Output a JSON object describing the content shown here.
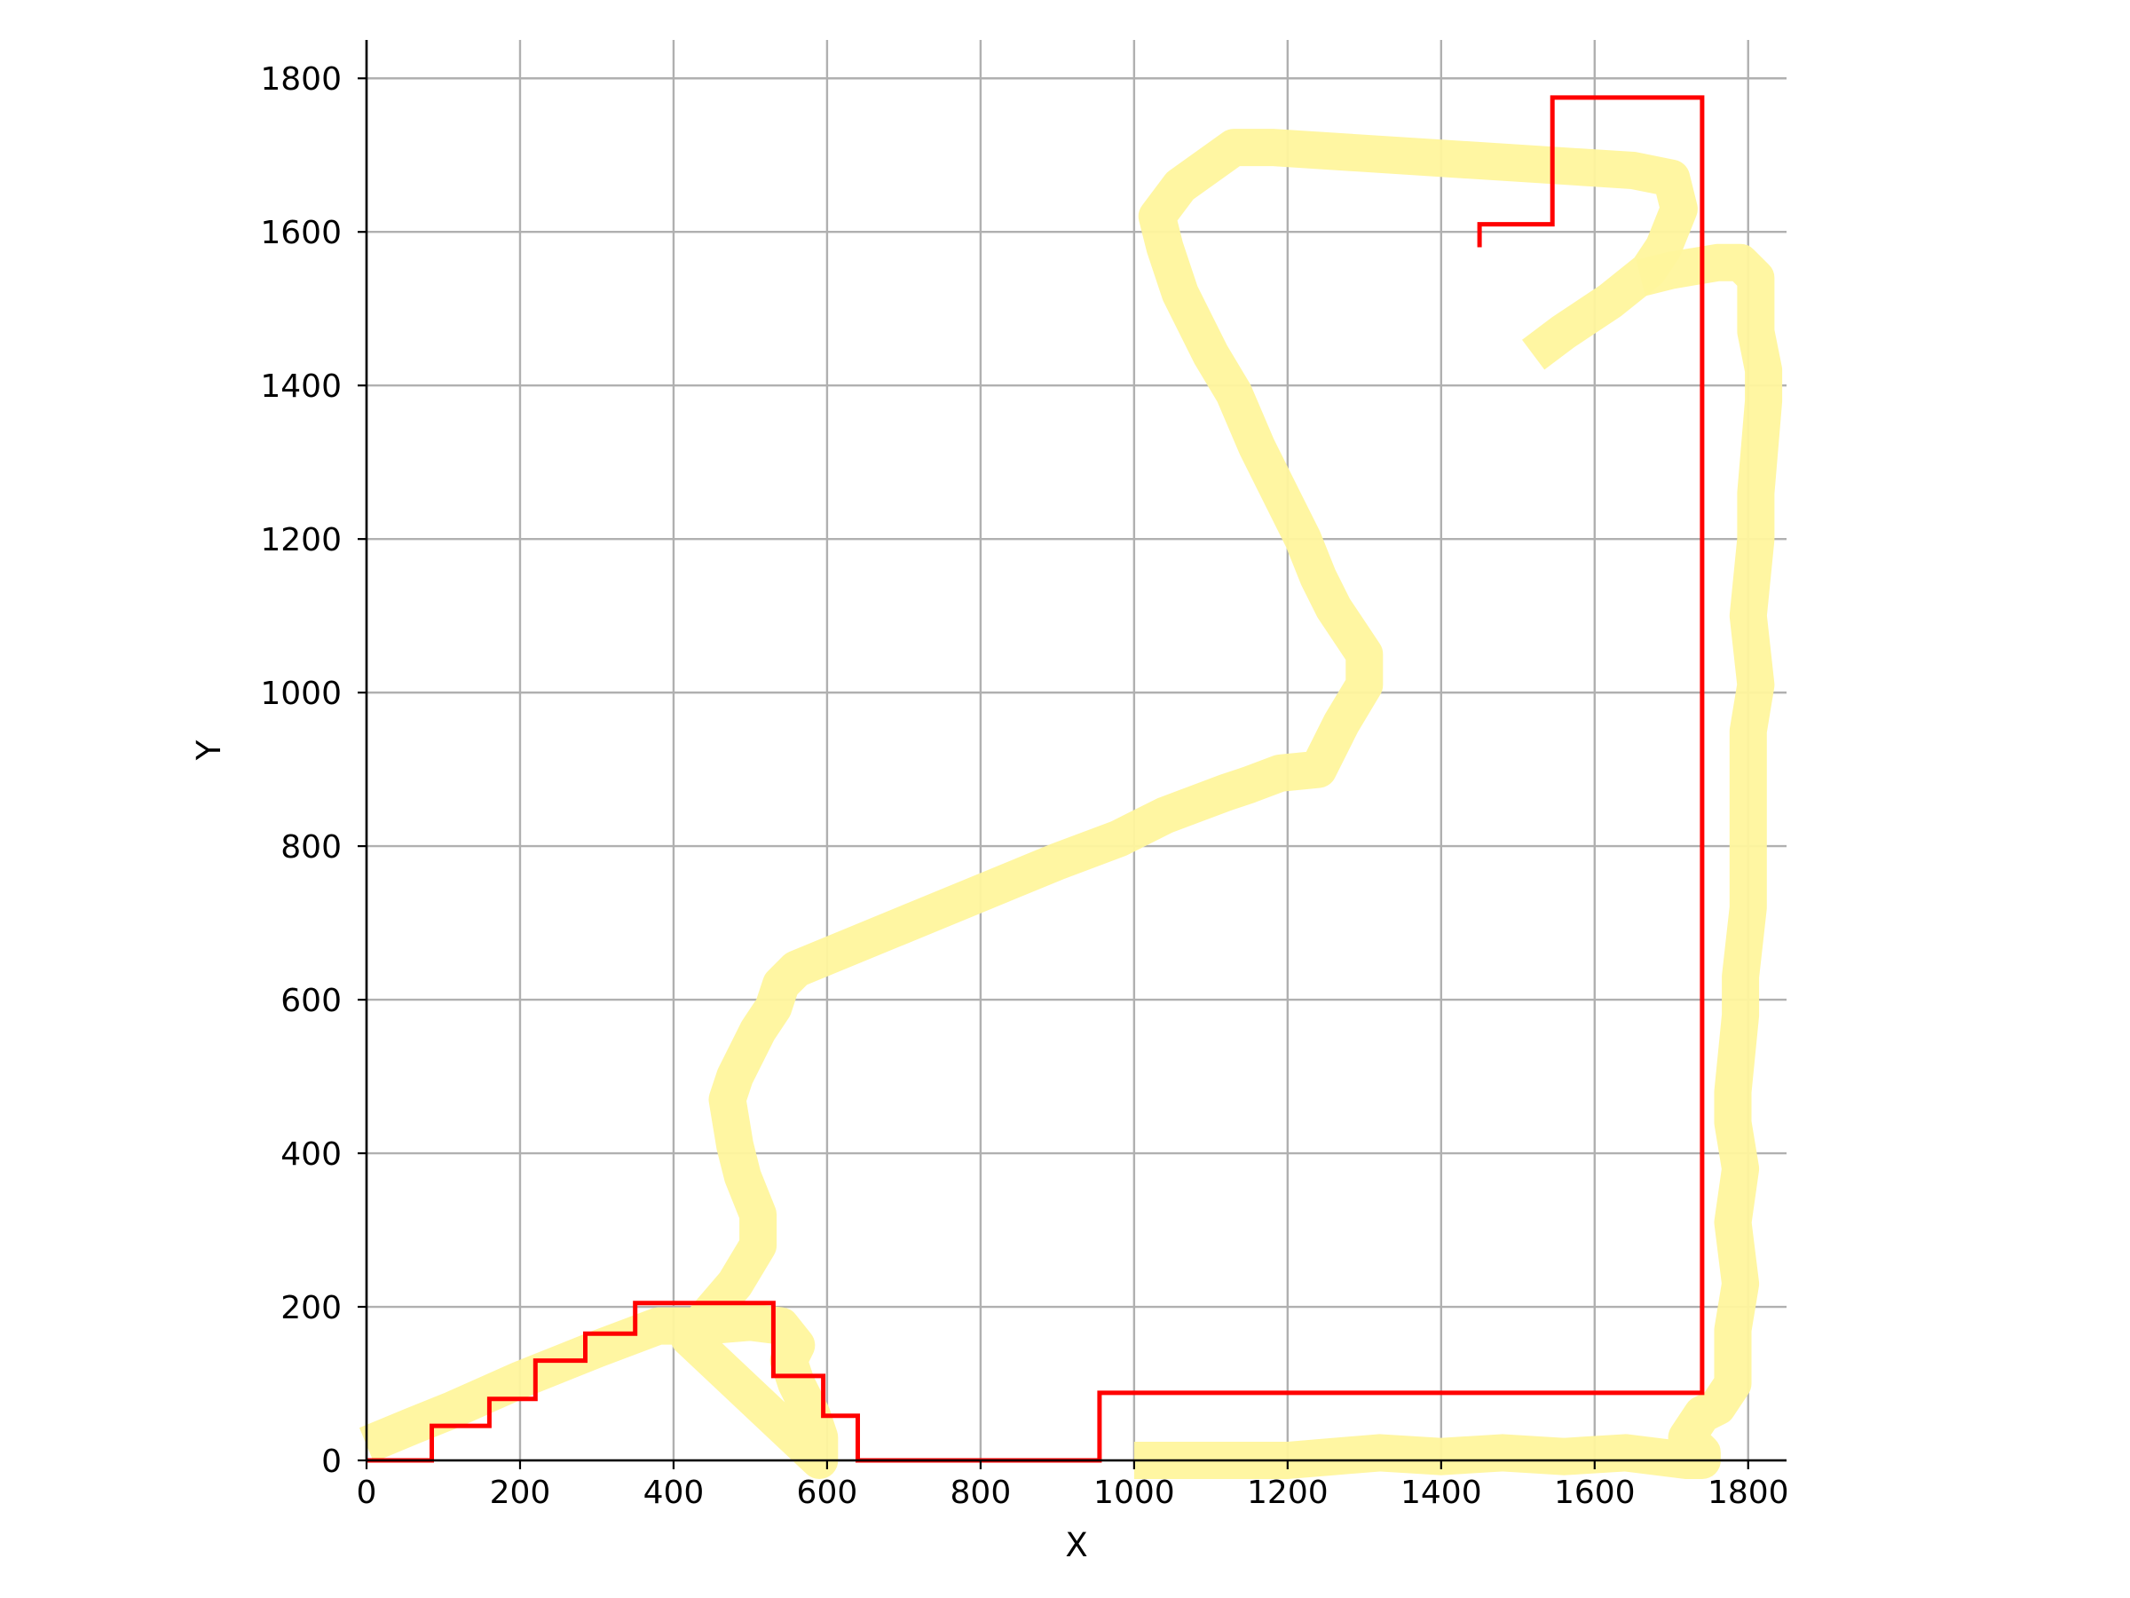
{
  "chart_data": {
    "type": "line",
    "title": "",
    "xlabel": "X",
    "ylabel": "Y",
    "xlim": [
      0,
      1850
    ],
    "ylim": [
      0,
      1850
    ],
    "xticks": [
      0,
      200,
      400,
      600,
      800,
      1000,
      1200,
      1400,
      1600,
      1800
    ],
    "yticks": [
      0,
      200,
      400,
      600,
      800,
      1000,
      1200,
      1400,
      1600,
      1800
    ],
    "grid": true,
    "legend": "none",
    "series": [
      {
        "style": "thick-translucent-path",
        "color": "#fff59d",
        "points": [
          [
            0,
            20
          ],
          [
            60,
            45
          ],
          [
            110,
            65
          ],
          [
            200,
            105
          ],
          [
            300,
            145
          ],
          [
            380,
            175
          ],
          [
            440,
            175
          ],
          [
            500,
            180
          ],
          [
            540,
            175
          ],
          [
            560,
            150
          ],
          [
            550,
            130
          ],
          [
            560,
            100
          ],
          [
            580,
            60
          ],
          [
            590,
            30
          ],
          [
            590,
            0
          ],
          [
            590,
            0
          ],
          [
            590,
            0
          ],
          [
            420,
            160
          ],
          [
            480,
            230
          ],
          [
            510,
            280
          ],
          [
            510,
            320
          ],
          [
            490,
            370
          ],
          [
            480,
            410
          ],
          [
            470,
            470
          ],
          [
            480,
            500
          ],
          [
            510,
            560
          ],
          [
            530,
            590
          ],
          [
            540,
            620
          ],
          [
            560,
            640
          ],
          [
            900,
            780
          ],
          [
            980,
            810
          ],
          [
            1040,
            840
          ],
          [
            1080,
            855
          ],
          [
            1120,
            870
          ],
          [
            1150,
            880
          ],
          [
            1190,
            895
          ],
          [
            1240,
            900
          ],
          [
            1270,
            960
          ],
          [
            1300,
            1010
          ],
          [
            1300,
            1050
          ],
          [
            1280,
            1080
          ],
          [
            1260,
            1110
          ],
          [
            1240,
            1150
          ],
          [
            1220,
            1200
          ],
          [
            1200,
            1240
          ],
          [
            1160,
            1320
          ],
          [
            1130,
            1390
          ],
          [
            1100,
            1440
          ],
          [
            1080,
            1480
          ],
          [
            1060,
            1520
          ],
          [
            1040,
            1580
          ],
          [
            1030,
            1620
          ],
          [
            1060,
            1660
          ],
          [
            1130,
            1710
          ],
          [
            1180,
            1710
          ],
          [
            1650,
            1680
          ],
          [
            1700,
            1670
          ],
          [
            1710,
            1630
          ],
          [
            1690,
            1580
          ],
          [
            1670,
            1550
          ],
          [
            1620,
            1510
          ],
          [
            1560,
            1470
          ],
          [
            1520,
            1440
          ]
        ]
      },
      {
        "style": "thick-translucent-path",
        "color": "#fff59d",
        "points": [
          [
            1660,
            1540
          ],
          [
            1700,
            1550
          ],
          [
            1760,
            1560
          ],
          [
            1790,
            1560
          ],
          [
            1810,
            1540
          ],
          [
            1810,
            1470
          ],
          [
            1820,
            1420
          ],
          [
            1820,
            1380
          ],
          [
            1810,
            1260
          ],
          [
            1810,
            1200
          ],
          [
            1800,
            1100
          ],
          [
            1810,
            1010
          ],
          [
            1800,
            950
          ],
          [
            1800,
            810
          ],
          [
            1800,
            720
          ],
          [
            1790,
            630
          ],
          [
            1790,
            580
          ],
          [
            1780,
            480
          ],
          [
            1780,
            440
          ],
          [
            1790,
            380
          ],
          [
            1780,
            310
          ],
          [
            1790,
            230
          ],
          [
            1780,
            170
          ],
          [
            1780,
            100
          ],
          [
            1760,
            70
          ],
          [
            1740,
            60
          ],
          [
            1720,
            30
          ],
          [
            1740,
            10
          ],
          [
            1740,
            0
          ],
          [
            1720,
            0
          ],
          [
            1640,
            10
          ],
          [
            1560,
            5
          ],
          [
            1480,
            10
          ],
          [
            1400,
            5
          ],
          [
            1320,
            10
          ],
          [
            1260,
            5
          ],
          [
            1200,
            0
          ],
          [
            1100,
            0
          ],
          [
            1000,
            0
          ]
        ]
      },
      {
        "style": "thin-step-line",
        "color": "#ff0000",
        "points": [
          [
            0,
            0
          ],
          [
            85,
            0
          ],
          [
            85,
            45
          ],
          [
            160,
            45
          ],
          [
            160,
            80
          ],
          [
            220,
            80
          ],
          [
            220,
            130
          ],
          [
            285,
            130
          ],
          [
            285,
            165
          ],
          [
            350,
            165
          ],
          [
            350,
            205
          ],
          [
            530,
            205
          ],
          [
            530,
            110
          ],
          [
            595,
            110
          ],
          [
            595,
            58
          ],
          [
            640,
            58
          ],
          [
            640,
            0
          ],
          [
            955,
            0
          ],
          [
            955,
            88
          ],
          [
            1740,
            88
          ],
          [
            1740,
            1775
          ],
          [
            1545,
            1775
          ],
          [
            1545,
            1610
          ],
          [
            1450,
            1610
          ],
          [
            1450,
            1580
          ]
        ]
      }
    ]
  }
}
